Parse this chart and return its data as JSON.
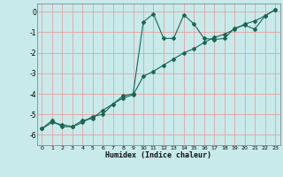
{
  "xlabel": "Humidex (Indice chaleur)",
  "bg_color": "#c8eaea",
  "grid_color": "#e8a0a0",
  "line_color": "#1a6655",
  "xlim": [
    -0.5,
    23.5
  ],
  "ylim": [
    -6.5,
    0.4
  ],
  "x": [
    0,
    1,
    2,
    3,
    4,
    5,
    6,
    7,
    8,
    9,
    10,
    11,
    12,
    13,
    14,
    15,
    16,
    17,
    18,
    19,
    20,
    21,
    22,
    23
  ],
  "y_wavy": [
    -5.7,
    -5.3,
    -5.6,
    -5.6,
    -5.4,
    -5.1,
    -5.0,
    -4.5,
    -4.1,
    -4.0,
    -0.5,
    -0.1,
    -1.3,
    -1.3,
    -0.15,
    -0.6,
    -1.3,
    -1.35,
    -1.3,
    -0.8,
    -0.65,
    -0.85,
    -0.2,
    0.1
  ],
  "y_linear": [
    -5.7,
    -5.4,
    -5.5,
    -5.6,
    -5.3,
    -5.2,
    -4.8,
    -4.5,
    -4.2,
    -4.05,
    -3.15,
    -2.9,
    -2.6,
    -2.3,
    -2.0,
    -1.8,
    -1.5,
    -1.25,
    -1.1,
    -0.85,
    -0.6,
    -0.45,
    -0.2,
    0.1
  ],
  "yticks": [
    0,
    -1,
    -2,
    -3,
    -4,
    -5,
    -6
  ],
  "xticks": [
    0,
    1,
    2,
    3,
    4,
    5,
    6,
    7,
    8,
    9,
    10,
    11,
    12,
    13,
    14,
    15,
    16,
    17,
    18,
    19,
    20,
    21,
    22,
    23
  ]
}
